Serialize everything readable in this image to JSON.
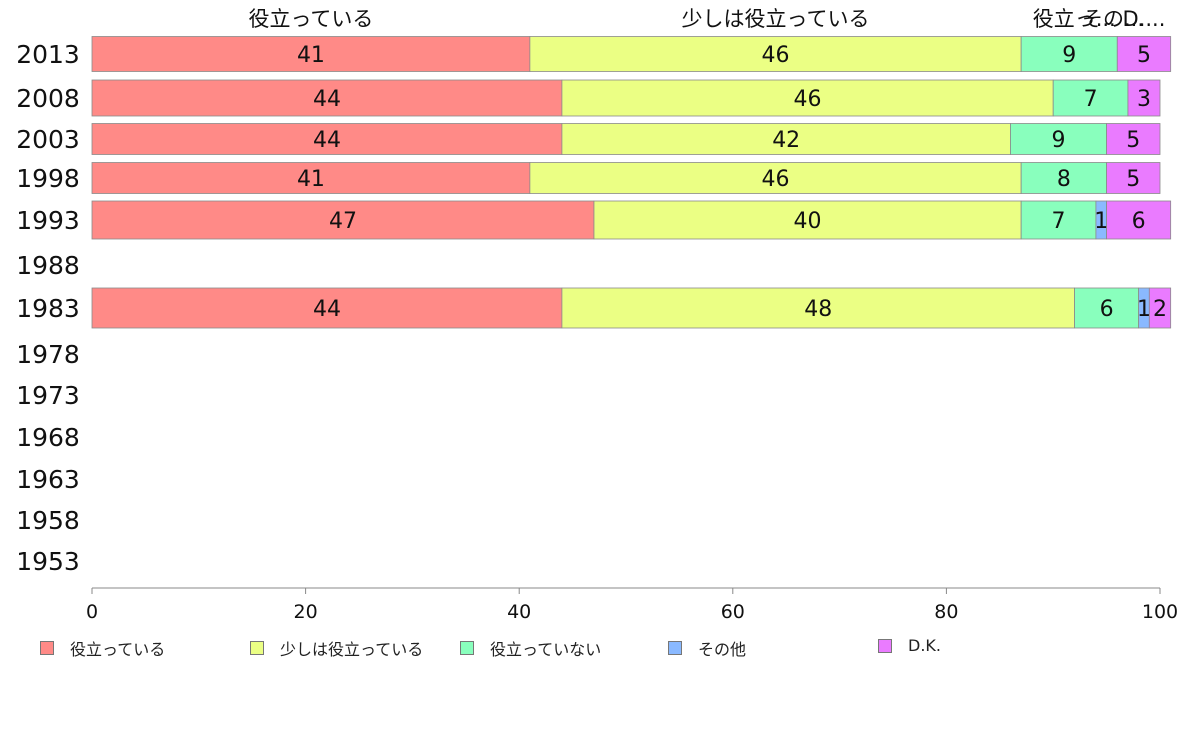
{
  "chart_data": {
    "type": "bar",
    "orientation": "horizontal",
    "stacked": true,
    "categories": [
      "2013",
      "2008",
      "2003",
      "1998",
      "1993",
      "1988",
      "1983",
      "1978",
      "1973",
      "1968",
      "1963",
      "1958",
      "1953"
    ],
    "series": [
      {
        "name": "役立っている",
        "color": "#ff8a87",
        "values": [
          41,
          44,
          44,
          41,
          47,
          null,
          44,
          null,
          null,
          null,
          null,
          null,
          null
        ]
      },
      {
        "name": "少しは役立っている",
        "color": "#ebff84",
        "values": [
          46,
          46,
          42,
          46,
          40,
          null,
          48,
          null,
          null,
          null,
          null,
          null,
          null
        ]
      },
      {
        "name": "役立っていない",
        "color": "#89ffbd",
        "values": [
          9,
          7,
          9,
          8,
          7,
          null,
          6,
          null,
          null,
          null,
          null,
          null,
          null
        ]
      },
      {
        "name": "その他",
        "color": "#8ab9ff",
        "values": [
          null,
          null,
          null,
          null,
          1,
          null,
          1,
          null,
          null,
          null,
          null,
          null,
          null
        ]
      },
      {
        "name": "D.K.",
        "color": "#ea7bff",
        "values": [
          5,
          3,
          5,
          5,
          6,
          null,
          2,
          null,
          null,
          null,
          null,
          null,
          null
        ]
      }
    ],
    "top_labels": [
      "役立っている",
      "少しは役立っている",
      "役立っ...",
      "その...",
      "D...."
    ],
    "xlim": [
      0,
      100
    ],
    "xticks": [
      "0",
      "20",
      "40",
      "60",
      "80",
      "100"
    ],
    "grid": false,
    "legend_position": "bottom"
  }
}
